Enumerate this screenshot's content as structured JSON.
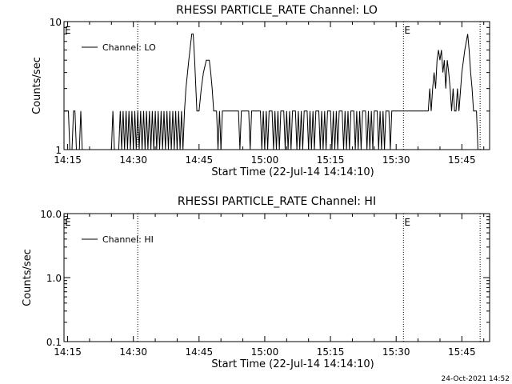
{
  "footer": {
    "timestamp": "24-Oct-2021 14:52"
  },
  "chart_data": [
    {
      "type": "line",
      "title": "RHESSI PARTICLE_RATE Channel: LO",
      "xlabel": "Start Time (22-Jul-14 14:14:10)",
      "ylabel": "Counts/sec",
      "xlim": [
        "14:14:10",
        "15:51:20"
      ],
      "ylim": [
        1,
        10
      ],
      "yscale": "log",
      "ytick_labels": [
        "1",
        "10"
      ],
      "xtick_labels": [
        "14:15",
        "14:30",
        "14:45",
        "15:00",
        "15:15",
        "15:30",
        "15:45"
      ],
      "legend": {
        "placement": "top-left",
        "entries": [
          "Channel: LO"
        ]
      },
      "markers": [
        {
          "time": "14:14:10",
          "label": "E",
          "style": "label"
        },
        {
          "time": "14:31:00",
          "label": "",
          "style": "dotted"
        },
        {
          "time": "15:31:40",
          "label": "E",
          "style": "dotted"
        },
        {
          "time": "15:49:10",
          "label": "",
          "style": "dotted"
        }
      ],
      "series": [
        {
          "name": "Channel: LO",
          "points": [
            [
              "14:14:10",
              2
            ],
            [
              "14:15:10",
              2
            ],
            [
              "14:15:30",
              1
            ],
            [
              "14:16:00",
              1
            ],
            [
              "14:16:20",
              2
            ],
            [
              "14:16:40",
              2
            ],
            [
              "14:17:00",
              1
            ],
            [
              "14:17:40",
              1
            ],
            [
              "14:18:00",
              2
            ],
            [
              "14:18:20",
              1
            ],
            [
              "14:25:00",
              1
            ],
            [
              "14:25:20",
              2
            ],
            [
              "14:25:40",
              1
            ],
            [
              "14:26:40",
              1
            ],
            [
              "14:27:00",
              2
            ],
            [
              "14:27:20",
              1
            ],
            [
              "14:27:40",
              2
            ],
            [
              "14:28:00",
              1
            ],
            [
              "14:28:20",
              2
            ],
            [
              "14:28:40",
              1
            ],
            [
              "14:29:00",
              2
            ],
            [
              "14:29:20",
              1
            ],
            [
              "14:29:40",
              2
            ],
            [
              "14:30:00",
              1
            ],
            [
              "14:30:20",
              2
            ],
            [
              "14:30:40",
              1
            ],
            [
              "14:31:00",
              2
            ],
            [
              "14:31:20",
              1
            ],
            [
              "14:31:40",
              2
            ],
            [
              "14:32:00",
              1
            ],
            [
              "14:32:20",
              2
            ],
            [
              "14:32:40",
              1
            ],
            [
              "14:33:00",
              2
            ],
            [
              "14:33:20",
              1
            ],
            [
              "14:33:40",
              2
            ],
            [
              "14:34:00",
              1
            ],
            [
              "14:34:20",
              2
            ],
            [
              "14:34:40",
              1
            ],
            [
              "14:35:00",
              2
            ],
            [
              "14:35:20",
              1
            ],
            [
              "14:35:40",
              2
            ],
            [
              "14:36:00",
              1
            ],
            [
              "14:36:20",
              2
            ],
            [
              "14:36:40",
              1
            ],
            [
              "14:37:00",
              2
            ],
            [
              "14:37:20",
              1
            ],
            [
              "14:37:40",
              2
            ],
            [
              "14:38:00",
              1
            ],
            [
              "14:38:20",
              2
            ],
            [
              "14:38:40",
              1
            ],
            [
              "14:39:00",
              2
            ],
            [
              "14:39:20",
              1
            ],
            [
              "14:39:40",
              2
            ],
            [
              "14:40:00",
              1
            ],
            [
              "14:40:20",
              2
            ],
            [
              "14:40:40",
              1
            ],
            [
              "14:41:00",
              2
            ],
            [
              "14:41:20",
              1
            ],
            [
              "14:41:40",
              2
            ],
            [
              "14:42:00",
              3
            ],
            [
              "14:42:40",
              5
            ],
            [
              "14:43:20",
              8
            ],
            [
              "14:43:40",
              8
            ],
            [
              "14:44:00",
              5
            ],
            [
              "14:44:30",
              2
            ],
            [
              "14:45:00",
              2
            ],
            [
              "14:45:30",
              3
            ],
            [
              "14:46:00",
              4
            ],
            [
              "14:46:40",
              5
            ],
            [
              "14:47:20",
              5
            ],
            [
              "14:47:40",
              4
            ],
            [
              "14:48:00",
              3
            ],
            [
              "14:48:20",
              2
            ],
            [
              "14:49:00",
              2
            ],
            [
              "14:49:20",
              1
            ],
            [
              "14:49:40",
              2
            ],
            [
              "14:50:00",
              1
            ],
            [
              "14:50:20",
              2
            ],
            [
              "14:54:00",
              2
            ],
            [
              "14:54:20",
              1
            ],
            [
              "14:54:40",
              2
            ],
            [
              "14:56:20",
              2
            ],
            [
              "14:56:40",
              1
            ],
            [
              "14:57:00",
              2
            ],
            [
              "14:59:00",
              2
            ],
            [
              "14:59:20",
              1
            ],
            [
              "14:59:40",
              2
            ],
            [
              "15:00:00",
              1
            ],
            [
              "15:00:20",
              2
            ],
            [
              "15:00:40",
              1
            ],
            [
              "15:01:00",
              2
            ],
            [
              "15:01:40",
              2
            ],
            [
              "15:02:00",
              1
            ],
            [
              "15:02:20",
              2
            ],
            [
              "15:02:40",
              1
            ],
            [
              "15:03:00",
              2
            ],
            [
              "15:03:20",
              1
            ],
            [
              "15:03:40",
              2
            ],
            [
              "15:04:20",
              2
            ],
            [
              "15:04:40",
              1
            ],
            [
              "15:05:00",
              2
            ],
            [
              "15:05:20",
              1
            ],
            [
              "15:05:40",
              2
            ],
            [
              "15:06:00",
              1
            ],
            [
              "15:06:20",
              2
            ],
            [
              "15:07:00",
              2
            ],
            [
              "15:07:20",
              1
            ],
            [
              "15:07:40",
              2
            ],
            [
              "15:08:00",
              1
            ],
            [
              "15:08:20",
              2
            ],
            [
              "15:08:40",
              1
            ],
            [
              "15:09:00",
              2
            ],
            [
              "15:09:40",
              2
            ],
            [
              "15:10:00",
              1
            ],
            [
              "15:10:20",
              2
            ],
            [
              "15:10:40",
              1
            ],
            [
              "15:11:00",
              2
            ],
            [
              "15:11:20",
              1
            ],
            [
              "15:11:40",
              2
            ],
            [
              "15:12:20",
              2
            ],
            [
              "15:12:40",
              1
            ],
            [
              "15:13:00",
              2
            ],
            [
              "15:13:20",
              1
            ],
            [
              "15:13:40",
              2
            ],
            [
              "15:14:00",
              1
            ],
            [
              "15:14:20",
              2
            ],
            [
              "15:15:00",
              2
            ],
            [
              "15:15:20",
              1
            ],
            [
              "15:15:40",
              2
            ],
            [
              "15:16:00",
              1
            ],
            [
              "15:16:20",
              2
            ],
            [
              "15:16:40",
              1
            ],
            [
              "15:17:00",
              2
            ],
            [
              "15:17:40",
              2
            ],
            [
              "15:18:00",
              1
            ],
            [
              "15:18:20",
              2
            ],
            [
              "15:18:40",
              1
            ],
            [
              "15:19:00",
              2
            ],
            [
              "15:19:20",
              1
            ],
            [
              "15:19:40",
              2
            ],
            [
              "15:20:20",
              2
            ],
            [
              "15:20:40",
              1
            ],
            [
              "15:21:00",
              2
            ],
            [
              "15:21:20",
              1
            ],
            [
              "15:21:40",
              2
            ],
            [
              "15:22:00",
              1
            ],
            [
              "15:22:20",
              2
            ],
            [
              "15:23:00",
              2
            ],
            [
              "15:23:20",
              1
            ],
            [
              "15:23:40",
              2
            ],
            [
              "15:24:00",
              1
            ],
            [
              "15:24:20",
              2
            ],
            [
              "15:24:40",
              1
            ],
            [
              "15:25:00",
              2
            ],
            [
              "15:25:40",
              2
            ],
            [
              "15:26:00",
              1
            ],
            [
              "15:26:20",
              2
            ],
            [
              "15:26:40",
              1
            ],
            [
              "15:27:00",
              2
            ],
            [
              "15:27:20",
              1
            ],
            [
              "15:27:40",
              2
            ],
            [
              "15:28:20",
              2
            ],
            [
              "15:28:40",
              1
            ],
            [
              "15:29:00",
              2
            ],
            [
              "15:36:40",
              2
            ],
            [
              "15:37:20",
              2
            ],
            [
              "15:37:40",
              3
            ],
            [
              "15:38:00",
              2
            ],
            [
              "15:38:20",
              3
            ],
            [
              "15:38:40",
              4
            ],
            [
              "15:39:00",
              3
            ],
            [
              "15:39:20",
              5
            ],
            [
              "15:39:40",
              6
            ],
            [
              "15:40:00",
              5
            ],
            [
              "15:40:20",
              6
            ],
            [
              "15:40:40",
              4
            ],
            [
              "15:41:00",
              5
            ],
            [
              "15:41:20",
              3
            ],
            [
              "15:41:40",
              5
            ],
            [
              "15:42:00",
              4
            ],
            [
              "15:42:20",
              3
            ],
            [
              "15:42:40",
              2
            ],
            [
              "15:43:00",
              3
            ],
            [
              "15:43:20",
              2
            ],
            [
              "15:43:40",
              2
            ],
            [
              "15:44:00",
              3
            ],
            [
              "15:44:20",
              2
            ],
            [
              "15:45:00",
              4
            ],
            [
              "15:45:40",
              6
            ],
            [
              "15:46:20",
              8
            ],
            [
              "15:46:40",
              6
            ],
            [
              "15:47:00",
              4
            ],
            [
              "15:47:20",
              3
            ],
            [
              "15:47:40",
              2
            ],
            [
              "15:48:20",
              2
            ],
            [
              "15:48:40",
              1
            ]
          ]
        }
      ]
    },
    {
      "type": "line",
      "title": "RHESSI PARTICLE_RATE Channel: HI",
      "xlabel": "Start Time (22-Jul-14 14:14:10)",
      "ylabel": "Counts/sec",
      "xlim": [
        "14:14:10",
        "15:51:20"
      ],
      "ylim": [
        0.1,
        10
      ],
      "yscale": "log",
      "ytick_labels": [
        "0.1",
        "1.0",
        "10.0"
      ],
      "xtick_labels": [
        "14:15",
        "14:30",
        "14:45",
        "15:00",
        "15:15",
        "15:30",
        "15:45"
      ],
      "legend": {
        "placement": "top-left",
        "entries": [
          "Channel: HI"
        ]
      },
      "markers": [
        {
          "time": "14:14:10",
          "label": "E",
          "style": "label"
        },
        {
          "time": "14:31:00",
          "label": "",
          "style": "dotted"
        },
        {
          "time": "15:31:40",
          "label": "E",
          "style": "dotted"
        },
        {
          "time": "15:49:10",
          "label": "",
          "style": "dotted"
        }
      ],
      "series": [
        {
          "name": "Channel: HI",
          "points": []
        }
      ]
    }
  ]
}
